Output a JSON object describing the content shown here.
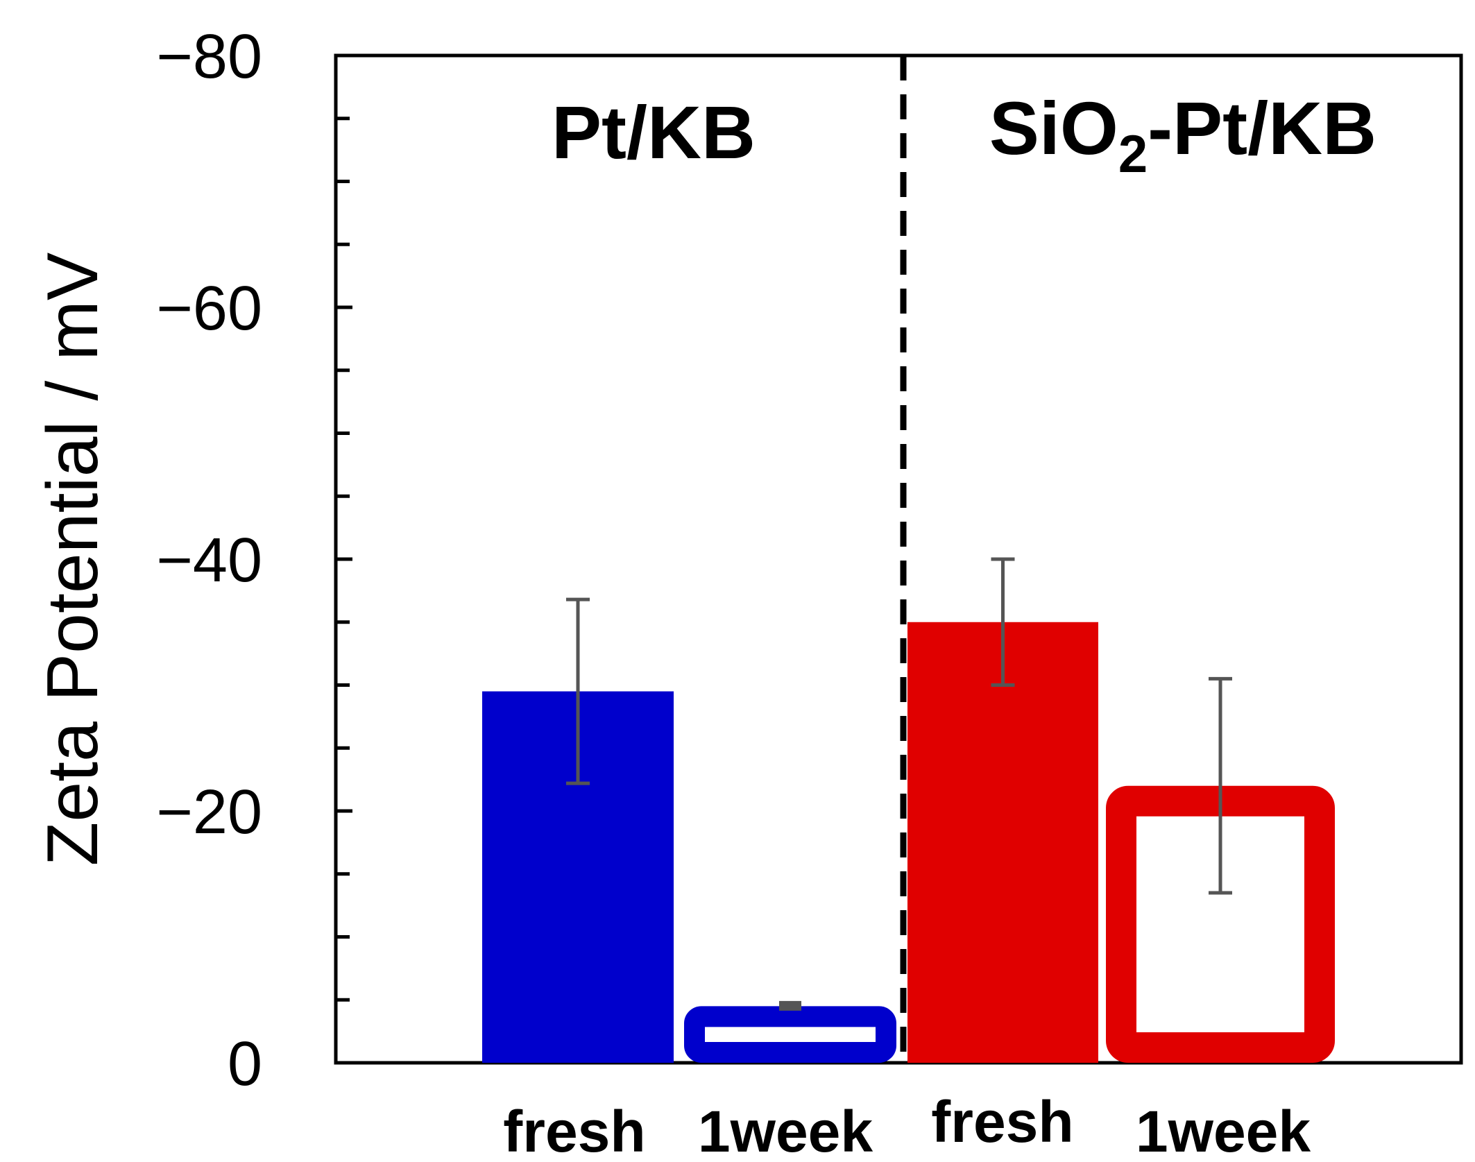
{
  "chart_data": {
    "type": "bar",
    "title": "",
    "xlabel": "",
    "ylabel": "Zeta Potential / mV",
    "y_axis_inverted": true,
    "ylim": [
      0,
      -80
    ],
    "yticks": [
      0,
      -20,
      -40,
      -60,
      -80
    ],
    "ytick_labels": [
      "0",
      "−20",
      "−40",
      "−60",
      "−80"
    ],
    "minor_tick_step": -5,
    "group_divider": "dashed",
    "groups": [
      {
        "label_main": "Pt/KB",
        "label_pre": "",
        "label_sub": "",
        "label_post": "",
        "color": "#0000cc",
        "bars": [
          {
            "category": "fresh",
            "value": -29.5,
            "error": 7.3,
            "fill": "solid"
          },
          {
            "category": "1week",
            "value": -4.5,
            "error": 0.3,
            "fill": "outline"
          }
        ]
      },
      {
        "label_main": "SiO2-Pt/KB",
        "label_pre": "SiO",
        "label_sub": "2",
        "label_post": "-Pt/KB",
        "color": "#e00000",
        "bars": [
          {
            "category": "fresh",
            "value": -35,
            "error": 5,
            "fill": "solid"
          },
          {
            "category": "1week",
            "value": -22,
            "error": 8.5,
            "fill": "outline"
          }
        ]
      }
    ],
    "error_bar_color": "#555555"
  }
}
